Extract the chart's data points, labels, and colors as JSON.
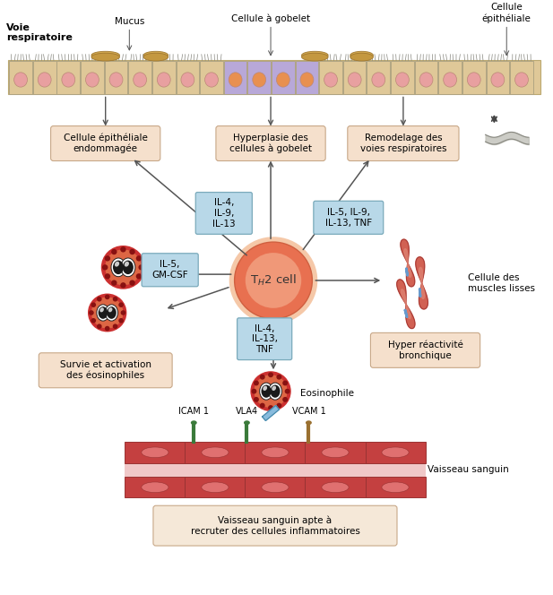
{
  "bg_color": "#ffffff",
  "cell_color_normal": "#dfc898",
  "cell_color_goblet": "#b8a8d8",
  "cell_oval_color": "#e8a0a0",
  "cell_oval_goblet": "#e89050",
  "cytokine_box_color": "#b8d8e8",
  "label_box_color": "#f5e0cc",
  "label_box_ec": "#c8a888",
  "th2_outer": "#e87050",
  "th2_inner": "#f0a080",
  "eosin_outer": "#cc3030",
  "eosin_mid": "#dd6644",
  "blood_cell_color": "#c44040",
  "blood_vessel_lumen": "#f0c8c8",
  "label_box_color2": "#f5e8d8",
  "muscle_outer": "#cc5040",
  "muscle_inner": "#dd8070",
  "muscle_highlight": "#6699cc",
  "labels": {
    "voie": "Voie\nrespiratoire",
    "mucus": "Mucus",
    "gobelet": "Cellule à gobelet",
    "epitheliale": "Cellule\népithéliale",
    "box_endommagee": "Cellule épithéliale\nendommagée",
    "box_hyperplasie": "Hyperplasie des\ncellules à gobelet",
    "box_remodelage": "Remodelage des\nvoies respiratoires",
    "th2": "T$_H$2 cell",
    "cytokine_up_left": "IL-4,\nIL-9,\nIL-13",
    "cytokine_up_right": "IL-5, IL-9,\nIL-13, TNF",
    "cytokine_left": "IL-5,\nGM-CSF",
    "cytokine_down": "IL-4,\nIL-13,\nTNF",
    "box_survie": "Survie et activation\ndes éosinophiles",
    "box_hyper": "Hyper réactivité\nbronchique",
    "cellule_muscles": "Cellule des\nmuscles lisses",
    "eosinophile": "Eosinophile",
    "icam1": "ICAM 1",
    "vla4": "VLA4",
    "vcam1": "VCAM 1",
    "vaisseau": "Vaisseau sanguin",
    "box_vaisseau": "Vaisseau sanguin apte à\nrecruter des cellules inflammatoires"
  }
}
